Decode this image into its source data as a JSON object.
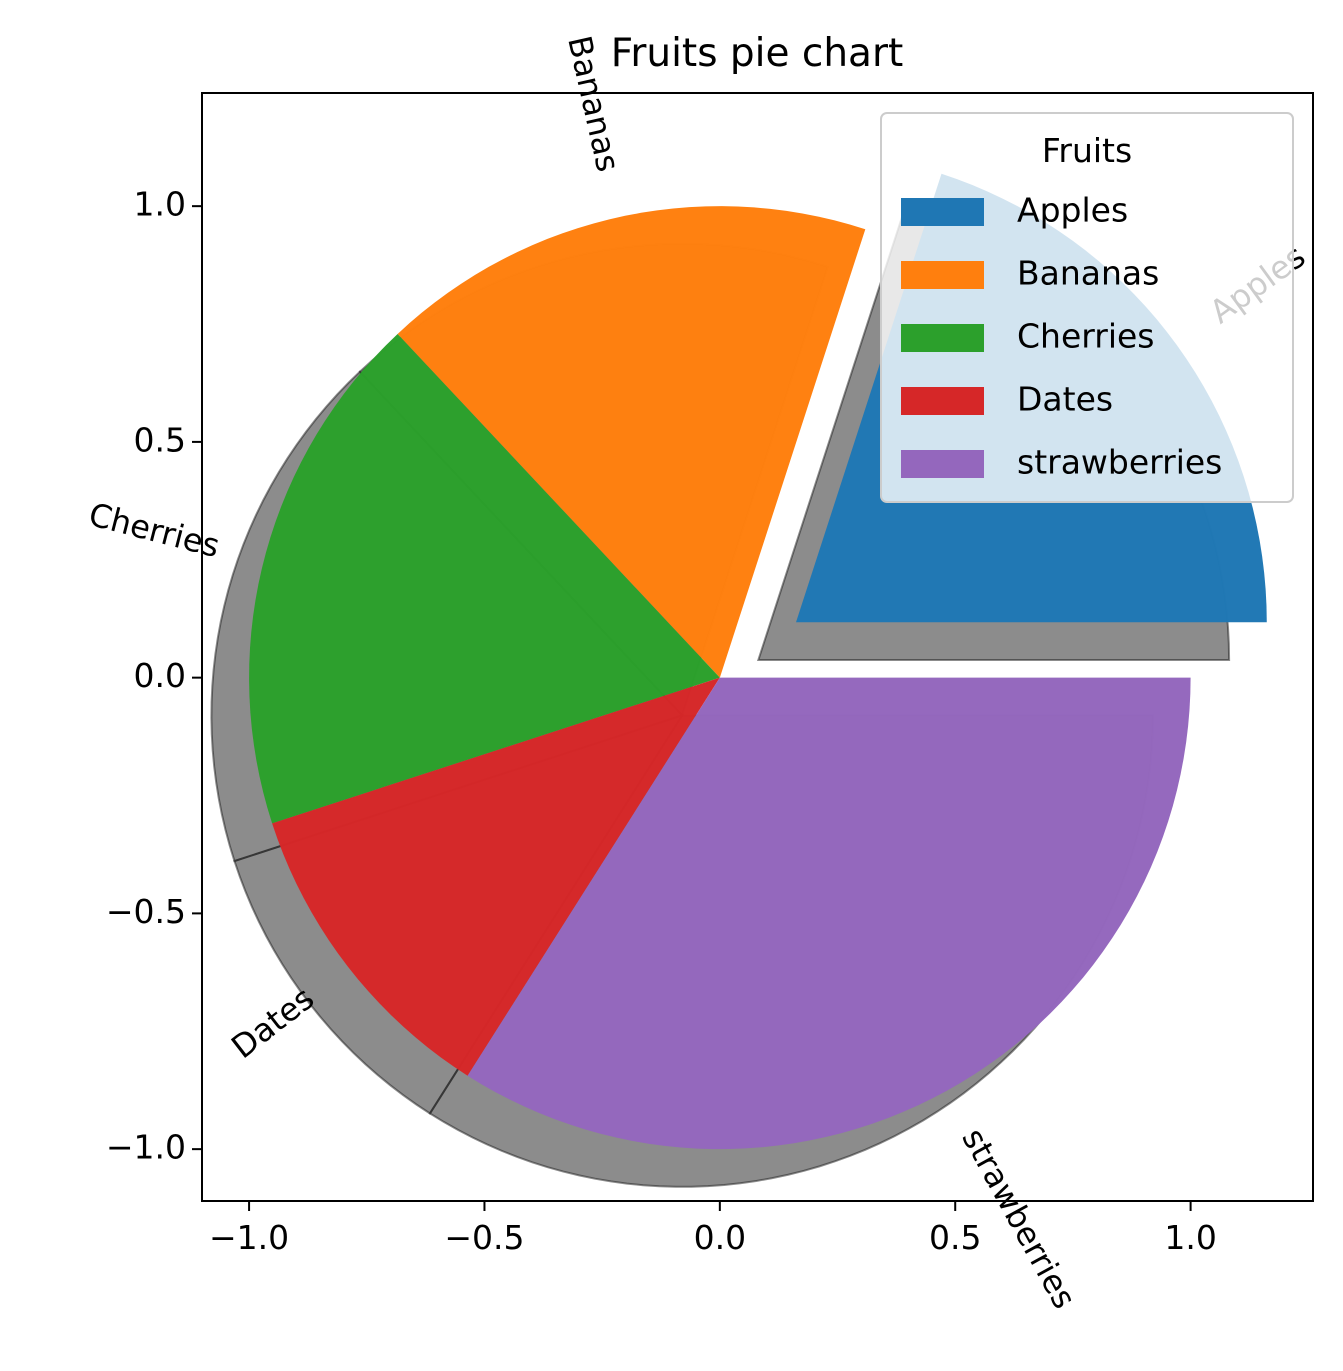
{
  "chart_data": {
    "type": "pie",
    "title": "Fruits pie chart",
    "categories": [
      "Apples",
      "Bananas",
      "Cherries",
      "Dates",
      "strawberries"
    ],
    "values": [
      20,
      17,
      18,
      11,
      34
    ],
    "colors": [
      "#1f77b4",
      "#ff7f0e",
      "#2ca02c",
      "#d62728",
      "#9467bd"
    ],
    "explode": [
      0.2,
      0,
      0,
      0,
      0
    ],
    "shadow": true,
    "startangle": 0,
    "xlim": [
      -1.1,
      1.26
    ],
    "ylim": [
      -1.11,
      1.24
    ],
    "xticks": [
      -1.0,
      -0.5,
      0.0,
      0.5,
      1.0
    ],
    "xtick_labels": [
      "−1.0",
      "−0.5",
      "0.0",
      "0.5",
      "1.0"
    ],
    "yticks": [
      -1.0,
      -0.5,
      0.0,
      0.5,
      1.0
    ],
    "ytick_labels": [
      "−1.0",
      "−0.5",
      "0.0",
      "0.5",
      "1.0"
    ],
    "legend": {
      "title": "Fruits",
      "placement": "upper right",
      "entries": [
        "Apples",
        "Bananas",
        "Cherries",
        "Dates",
        "strawberries"
      ]
    }
  }
}
